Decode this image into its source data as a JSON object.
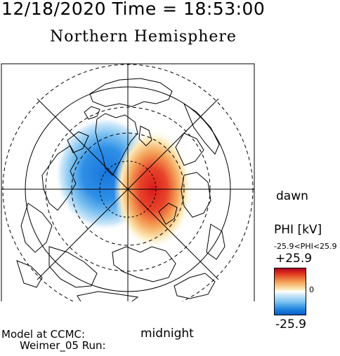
{
  "header": {
    "datetime": "12/18/2020 Time = 18:53:00",
    "title": "Northern Hemisphere"
  },
  "map": {
    "labels": {
      "dawn": "dawn",
      "midnight": "midnight"
    },
    "potential_cells": {
      "negative_color": "#1f86e0",
      "positive_color": "#e23a1e"
    }
  },
  "colorbar": {
    "title": "PHI [kV]",
    "range_text": "-25.9<PHI<25.9",
    "max_label": "+25.9",
    "zero_label": "0",
    "min_label": "-25.9",
    "max_value": 25.9,
    "min_value": -25.9
  },
  "footer": {
    "model_line": "Model at CCMC:",
    "run_line": "Weimer_05 Run:"
  }
}
